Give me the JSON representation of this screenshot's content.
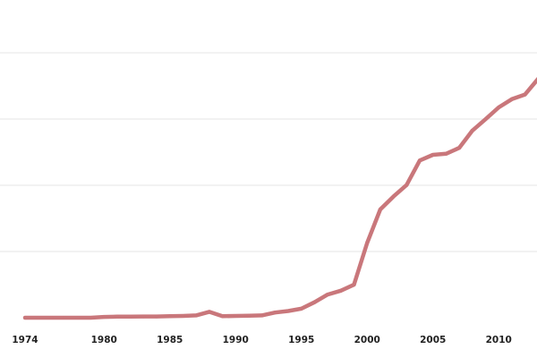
{
  "chart_data": {
    "type": "line",
    "title": "",
    "xlabel": "",
    "ylabel": "",
    "x_ticks": [
      "1974",
      "1980",
      "1985",
      "1990",
      "1995",
      "2000",
      "2005",
      "2010"
    ],
    "y_ticks": [
      "",
      "",
      "",
      ""
    ],
    "grid": true,
    "legend": "none",
    "colors": {
      "line": "#c9777b",
      "grid": "#e6e6e6",
      "text": "#222222"
    },
    "series": [
      {
        "x": [
          1974,
          1975,
          1976,
          1977,
          1978,
          1979,
          1980,
          1981,
          1982,
          1983,
          1984,
          1985,
          1986,
          1987,
          1988,
          1989,
          1990,
          1991,
          1992,
          1993,
          1994,
          1995,
          1996,
          1997,
          1998,
          1999,
          2000,
          2001,
          2002,
          2003,
          2004,
          2005,
          2006,
          2007,
          2008,
          2009,
          2010,
          2011,
          2012,
          2013
        ],
        "y": [
          0.0,
          0.0,
          0.0,
          0.0,
          0.0,
          0.0,
          0.03,
          0.04,
          0.04,
          0.05,
          0.05,
          0.06,
          0.07,
          0.09,
          0.23,
          0.06,
          0.07,
          0.08,
          0.09,
          0.2,
          0.26,
          0.35,
          0.6,
          0.9,
          1.05,
          1.28,
          2.9,
          4.2,
          4.7,
          5.15,
          6.1,
          6.32,
          6.36,
          6.59,
          7.26,
          7.7,
          8.16,
          8.48,
          8.66,
          9.27
        ]
      }
    ]
  }
}
